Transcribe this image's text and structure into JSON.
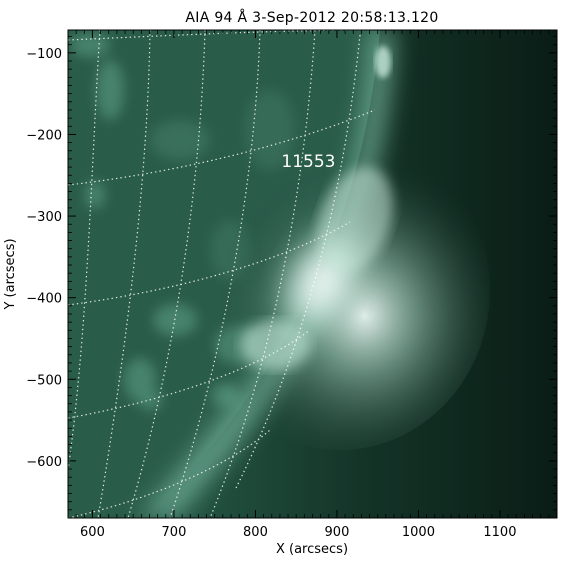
{
  "figure": {
    "title": "AIA 94 Å  3-Sep-2012 20:58:13.120",
    "xlabel": "X (arcsecs)",
    "ylabel": "Y (arcsecs)",
    "annotation": "11553",
    "colors": {
      "frame": "#000000",
      "background": "#ffffff",
      "plot_bg": "#1b3e31",
      "grid": "#ffffff"
    }
  },
  "chart_data": {
    "type": "heatmap",
    "title": "AIA 94 Å  3-Sep-2012 20:58:13.120",
    "xlabel": "X (arcsecs)",
    "ylabel": "Y (arcsecs)",
    "xlim": [
      570,
      1170
    ],
    "ylim": [
      -670,
      -72
    ],
    "xticks": [
      600,
      700,
      800,
      900,
      1000,
      1100
    ],
    "yticks": [
      -600,
      -500,
      -400,
      -300,
      -200,
      -100
    ],
    "annotations": [
      {
        "text": "11553",
        "x": 865,
        "y": -240
      }
    ],
    "grid": "heliographic dotted lines"
  }
}
